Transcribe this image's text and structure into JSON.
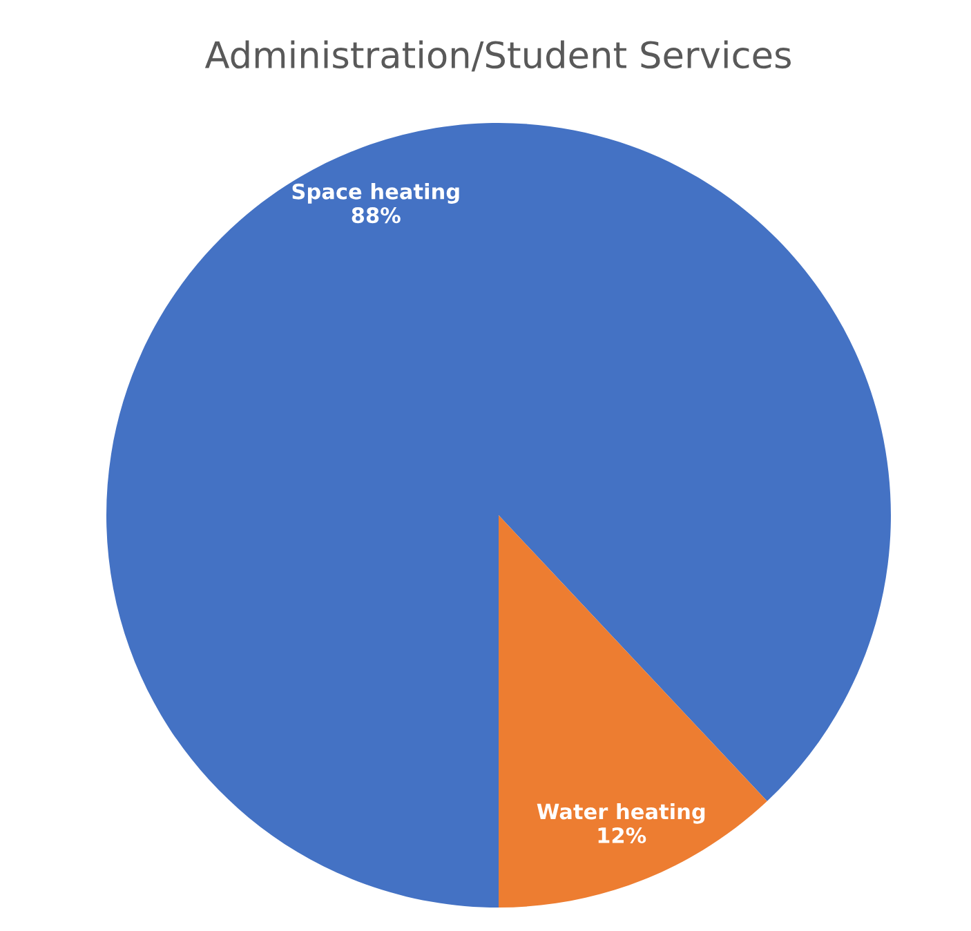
{
  "chart_data": {
    "type": "pie",
    "title": "Administration/Student Services",
    "categories": [
      "Space heating",
      "Water heating"
    ],
    "values": [
      88,
      12
    ],
    "colors": [
      "#4472c4",
      "#ed7d31"
    ],
    "value_labels": [
      "88%",
      "12%"
    ],
    "legend": false
  }
}
